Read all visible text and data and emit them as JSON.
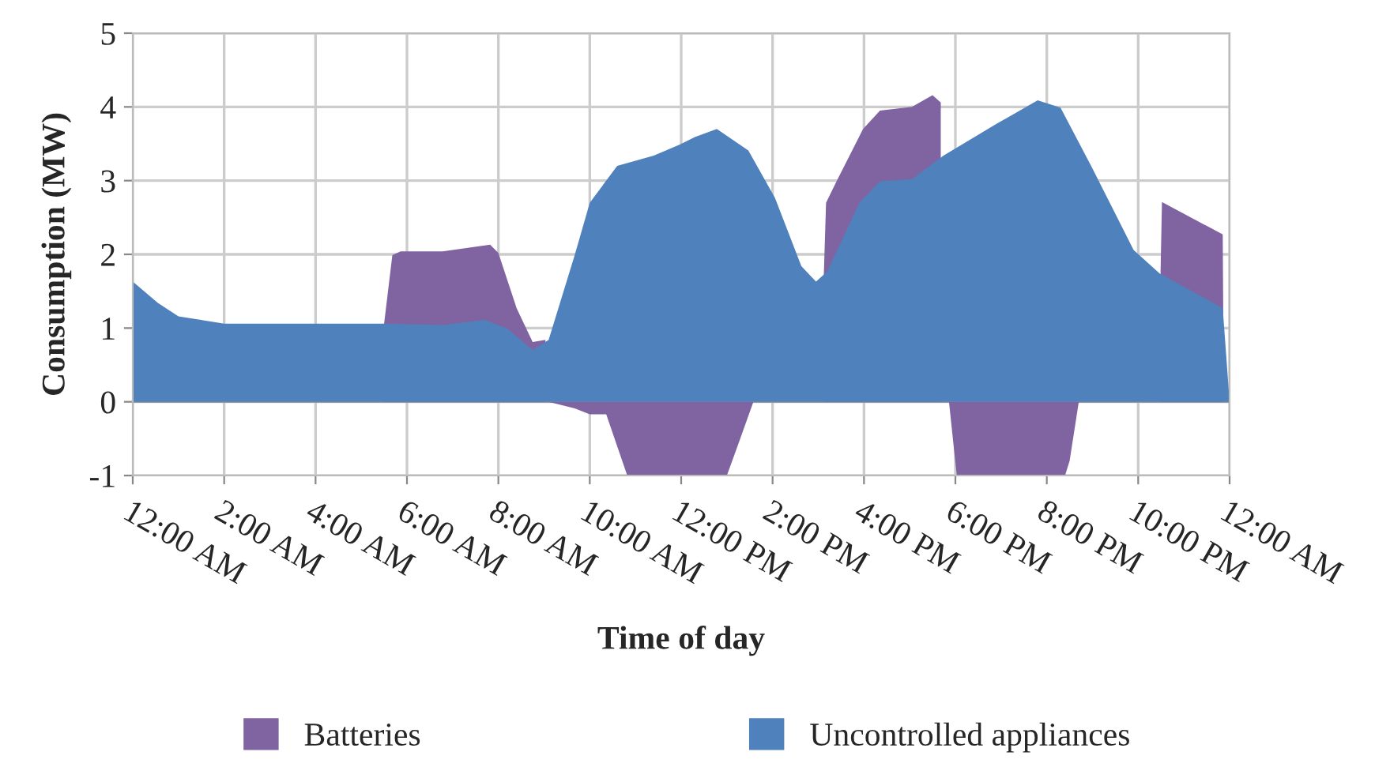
{
  "chart_data": {
    "type": "area",
    "xlabel": "Time of day",
    "ylabel": "Consumption (MW)",
    "xlim": [
      0,
      24
    ],
    "ylim": [
      -1,
      5
    ],
    "yticks": [
      -1,
      0,
      1,
      2,
      3,
      4,
      5
    ],
    "xticks": [
      {
        "value": 0,
        "label": "12:00 AM"
      },
      {
        "value": 2,
        "label": "2:00 AM"
      },
      {
        "value": 4,
        "label": "4:00 AM"
      },
      {
        "value": 6,
        "label": "6:00 AM"
      },
      {
        "value": 8,
        "label": "8:00 AM"
      },
      {
        "value": 10,
        "label": "10:00 AM"
      },
      {
        "value": 12,
        "label": "12:00 PM"
      },
      {
        "value": 14,
        "label": "2:00 PM"
      },
      {
        "value": 16,
        "label": "4:00 PM"
      },
      {
        "value": 18,
        "label": "6:00 PM"
      },
      {
        "value": 20,
        "label": "8:00 PM"
      },
      {
        "value": 22,
        "label": "10:00 PM"
      },
      {
        "value": 24,
        "label": "12:00 AM"
      }
    ],
    "grid": true,
    "legend": "bottom",
    "series": [
      {
        "name": "Batteries",
        "color": "#8064a2",
        "x": [
          5.5,
          5.68,
          5.86,
          6.78,
          7.82,
          8.0,
          8.4,
          8.75,
          9.03,
          9.05,
          9.1,
          9.67,
          10.0,
          10.36,
          10.82,
          13.0,
          13.24,
          13.58,
          13.6,
          15.12,
          15.17,
          15.4,
          15.98,
          16.35,
          17.05,
          17.5,
          17.68,
          17.7,
          17.8,
          17.86,
          18.03,
          20.4,
          20.5,
          20.7,
          20.8,
          22.49,
          22.52,
          23.85,
          23.86
        ],
        "values": [
          1.06,
          1.99,
          2.04,
          2.04,
          2.13,
          2.02,
          1.27,
          0.81,
          0.84,
          null,
          0,
          -0.09,
          -0.17,
          -0.17,
          -1,
          -1,
          -0.59,
          0,
          null,
          1.7,
          2.7,
          2.99,
          3.7,
          3.95,
          4.0,
          4.16,
          4.06,
          null,
          null,
          0,
          -1,
          -1,
          -0.8,
          0,
          null,
          1.77,
          2.71,
          2.27,
          1.27
        ]
      },
      {
        "name": "Uncontrolled appliances",
        "color": "#4f81bd",
        "x": [
          0,
          0.55,
          1.0,
          2.0,
          4.0,
          5.5,
          6.8,
          7.7,
          8.2,
          8.75,
          9.1,
          9.67,
          10.0,
          10.6,
          11.4,
          11.97,
          12.3,
          12.78,
          13.47,
          14.05,
          14.63,
          14.95,
          15.2,
          15.9,
          16.35,
          17.05,
          17.74,
          18.9,
          19.8,
          20.3,
          20.97,
          21.9,
          22.47,
          23.85,
          24
        ],
        "values": [
          1.63,
          1.34,
          1.16,
          1.06,
          1.06,
          1.06,
          1.04,
          1.11,
          0.99,
          0.7,
          0.84,
          1.99,
          2.7,
          3.2,
          3.34,
          3.49,
          3.59,
          3.7,
          3.41,
          2.77,
          1.84,
          1.63,
          1.77,
          2.7,
          2.99,
          3.02,
          3.34,
          3.77,
          4.09,
          3.99,
          3.2,
          2.06,
          1.74,
          1.27,
          0
        ]
      }
    ]
  }
}
